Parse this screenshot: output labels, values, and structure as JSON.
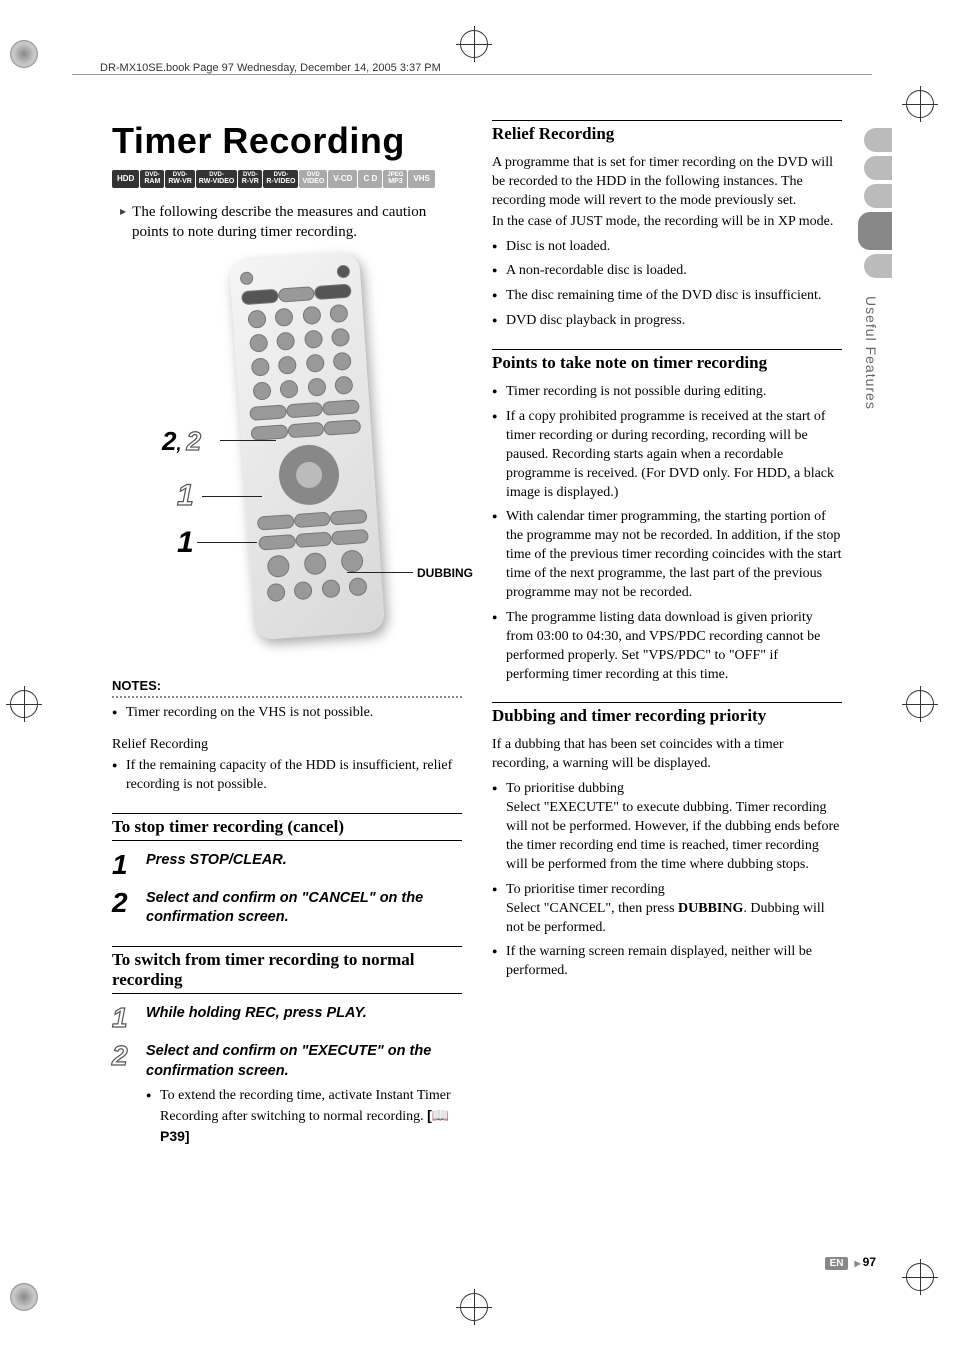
{
  "header": "DR-MX10SE.book  Page 97  Wednesday, December 14, 2005  3:37 PM",
  "title": "Timer Recording",
  "chips": [
    {
      "l2": "HDD"
    },
    {
      "l1": "DVD-",
      "l2": "RAM"
    },
    {
      "l1": "DVD-",
      "l2": "RW-VR"
    },
    {
      "l1": "DVD-",
      "l2": "RW-VIDEO"
    },
    {
      "l1": "DVD-",
      "l2": "R-VR"
    },
    {
      "l1": "DVD-",
      "l2": "R-VIDEO"
    },
    {
      "l1": "DVD",
      "l2": "VIDEO",
      "grey": true
    },
    {
      "l2": "V-CD",
      "grey": true
    },
    {
      "l2": "C D",
      "grey": true
    },
    {
      "l1": "JPEG",
      "l2": "MP3",
      "grey": true
    },
    {
      "l2": "VHS",
      "grey": true
    }
  ],
  "intro": "The following describe the measures and caution points to note during timer recording.",
  "callouts": {
    "c1": "2",
    "c1b": "2",
    "c2": "1",
    "c3": "1",
    "dubbing": "DUBBING"
  },
  "notes_header": "NOTES:",
  "notes": [
    "Timer recording on the VHS is not possible."
  ],
  "relief_sub": "Relief Recording",
  "relief_notes": [
    "If the remaining capacity of the HDD is insufficient, relief recording is not possible."
  ],
  "stop_section": "To stop timer recording (cancel)",
  "stop_steps": [
    {
      "n": "1",
      "text": "Press STOP/CLEAR."
    },
    {
      "n": "2",
      "text": "Select and confirm on \"CANCEL\" on the confirmation screen."
    }
  ],
  "switch_section": "To switch from timer recording to normal recording",
  "switch_steps": [
    {
      "n": "1",
      "outline": true,
      "text": "While holding REC, press PLAY."
    },
    {
      "n": "2",
      "outline": true,
      "text": "Select and confirm on \"EXECUTE\" on the confirmation screen.",
      "sub": "To extend the recording time, activate Instant Timer Recording after switching to normal recording.",
      "ref": "[📖 P39]"
    }
  ],
  "right": {
    "relief_hdr": "Relief Recording",
    "relief_p1": "A programme that is set for timer recording on the DVD will be recorded to the HDD in the following instances. The recording mode will revert to the mode previously set.",
    "relief_p2": "In the case of JUST mode, the recording will be in XP mode.",
    "relief_bullets": [
      "Disc is not loaded.",
      "A non-recordable disc is loaded.",
      "The disc remaining time of the DVD disc is insufficient.",
      "DVD disc playback in progress."
    ],
    "points_hdr": "Points to take note on timer recording",
    "points_bullets": [
      "Timer recording is not possible during editing.",
      "If a copy prohibited programme is received at the start of timer recording or during recording, recording will be paused. Recording starts again when a recordable programme is received. (For DVD only. For HDD, a black image is displayed.)",
      "With calendar timer programming, the starting portion of the programme may not be recorded. In addition, if the stop time of the previous timer recording coincides with the start time of the next programme, the last part of the previous programme may not be recorded.",
      "The programme listing data download is given priority from 03:00 to 04:30, and VPS/PDC recording cannot be performed properly. Set \"VPS/PDC\" to \"OFF\" if performing timer recording at this time."
    ],
    "dub_hdr": "Dubbing and timer recording priority",
    "dub_p": "If a dubbing that has been set coincides with a timer recording, a warning will be displayed.",
    "dub_bullets": [
      {
        "lead": "To prioritise dubbing",
        "body": "Select \"EXECUTE\" to execute dubbing. Timer recording will not be performed. However, if the dubbing ends before the timer recording end time is reached, timer recording will be performed from the time where dubbing stops."
      },
      {
        "lead": "To prioritise timer recording",
        "body": "Select \"CANCEL\", then press <b>DUBBING</b>. Dubbing will not be performed."
      },
      {
        "lead": "",
        "body": "If the warning screen remain displayed, neither will be performed."
      }
    ]
  },
  "side_label": "Useful Features",
  "page_en": "EN",
  "page_no": "97"
}
